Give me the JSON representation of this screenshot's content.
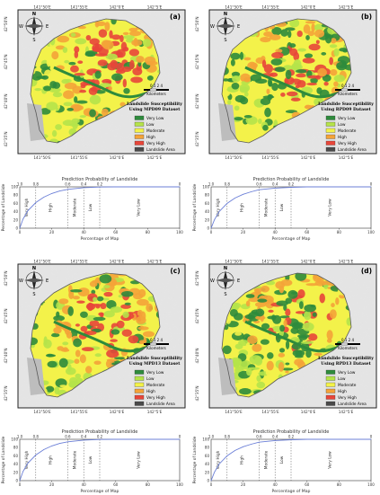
{
  "panels": [
    {
      "letter": "(a)",
      "title_line1": "Landslide Susceptibility",
      "title_line2": "Using MPD09 Dataset"
    },
    {
      "letter": "(b)",
      "title_line1": "Landslide Susceptibility",
      "title_line2": "Using RPD09 Dataset"
    },
    {
      "letter": "(c)",
      "title_line1": "Landslide Susceptibility",
      "title_line2": "Using MPD13 Dataset"
    },
    {
      "letter": "(d)",
      "title_line1": "Landslide Susceptibility",
      "title_line2": "Using RPD13 Dataset"
    }
  ],
  "map_axes": {
    "lon_ticks": [
      "141°50'E",
      "141°55'E",
      "142°0'E",
      "142°5'E"
    ],
    "lat_ticks": [
      "42°50'N",
      "42°45'N",
      "42°40'N",
      "42°35'N"
    ]
  },
  "compass": {
    "n": "N",
    "s": "S",
    "e": "E",
    "w": "W"
  },
  "scale_bar": {
    "numbers": "0 1 2    4",
    "unit": "Kilometers"
  },
  "legend": {
    "items": [
      {
        "label": "Very Low",
        "color": "#2e8b3c"
      },
      {
        "label": "Low",
        "color": "#b5e34a"
      },
      {
        "label": "Moderate",
        "color": "#f3f24a"
      },
      {
        "label": "High",
        "color": "#f4a338"
      },
      {
        "label": "Very High",
        "color": "#e8463a"
      },
      {
        "label": "Landslide Area",
        "color": "#4a4a4a"
      }
    ]
  },
  "curve": {
    "top_title": "Prediction Probability of Landslide",
    "top_ticks": [
      "1.0",
      "0.8",
      "0.6",
      "0.4",
      "0.2",
      "0"
    ],
    "bottom_ticks": [
      "0",
      "20",
      "40",
      "60",
      "80",
      "100"
    ],
    "y_ticks": [
      "0",
      "20",
      "40",
      "60",
      "80",
      "100"
    ],
    "xlabel": "Percentage of Map",
    "ylabel": "Percentage of Landslide",
    "zones": [
      "Very High",
      "High",
      "Moderate",
      "Low",
      "Very Low"
    ],
    "color": "#6b7fd7"
  },
  "chart_data": [
    {
      "type": "line",
      "x": [
        0,
        2,
        5,
        10,
        15,
        20,
        25,
        30,
        40,
        50,
        60,
        80,
        100
      ],
      "y": [
        0,
        22,
        42,
        62,
        75,
        84,
        90,
        94,
        98,
        99.5,
        100,
        100,
        100
      ],
      "xlim": [
        0,
        100
      ],
      "ylim": [
        0,
        100
      ],
      "xlabel": "Percentage of Map",
      "ylabel": "Percentage of Landslide",
      "dividers_x": [
        10,
        30,
        40,
        50
      ]
    },
    {
      "type": "line",
      "x": [
        0,
        2,
        5,
        10,
        15,
        20,
        25,
        30,
        40,
        50,
        60,
        80,
        100
      ],
      "y": [
        0,
        20,
        40,
        60,
        73,
        82,
        88,
        93,
        97,
        99,
        100,
        100,
        100
      ],
      "xlim": [
        0,
        100
      ],
      "ylim": [
        0,
        100
      ],
      "xlabel": "Percentage of Map",
      "ylabel": "Percentage of Landslide",
      "dividers_x": [
        10,
        30,
        40,
        50
      ]
    },
    {
      "type": "line",
      "x": [
        0,
        2,
        5,
        10,
        15,
        20,
        25,
        30,
        40,
        50,
        60,
        80,
        100
      ],
      "y": [
        0,
        22,
        42,
        62,
        75,
        84,
        90,
        94,
        98,
        99.5,
        100,
        100,
        100
      ],
      "xlim": [
        0,
        100
      ],
      "ylim": [
        0,
        100
      ],
      "xlabel": "Percentage of Map",
      "ylabel": "Percentage of Landslide",
      "dividers_x": [
        10,
        30,
        40,
        50
      ]
    },
    {
      "type": "line",
      "x": [
        0,
        2,
        5,
        10,
        15,
        20,
        25,
        30,
        40,
        50,
        60,
        80,
        100
      ],
      "y": [
        0,
        20,
        40,
        60,
        73,
        82,
        88,
        93,
        97,
        99,
        100,
        100,
        100
      ],
      "xlim": [
        0,
        100
      ],
      "ylim": [
        0,
        100
      ],
      "xlabel": "Percentage of Map",
      "ylabel": "Percentage of Landslide",
      "dividers_x": [
        10,
        30,
        40,
        50
      ]
    }
  ]
}
